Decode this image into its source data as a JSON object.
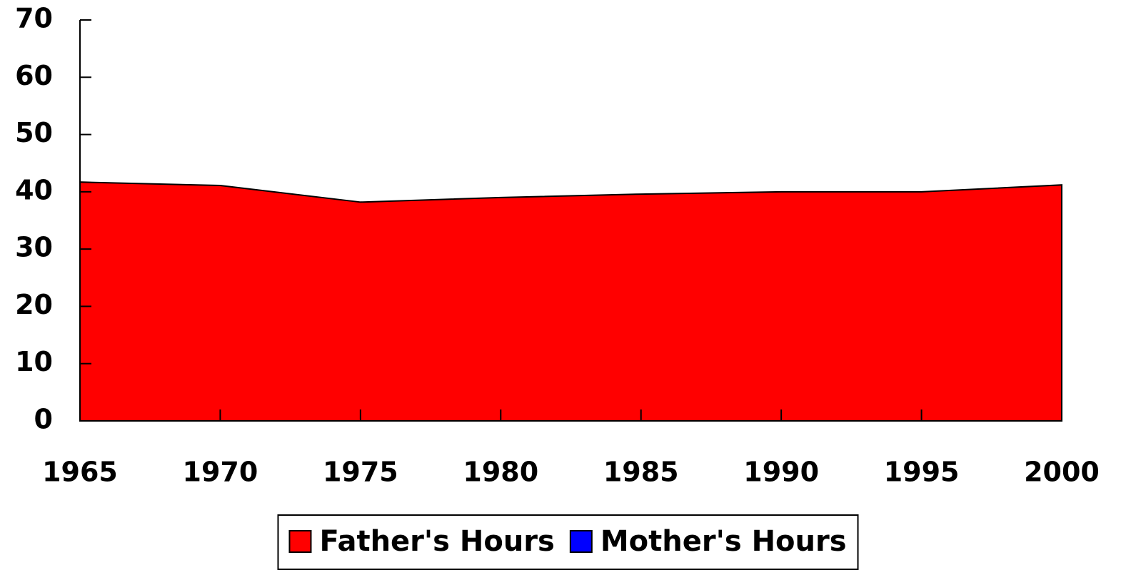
{
  "chart_data": {
    "type": "area",
    "x": [
      1965,
      1970,
      1975,
      1980,
      1985,
      1990,
      1995,
      2000
    ],
    "series": [
      {
        "name": "Father's Hours",
        "color": "#ff0000",
        "values": [
          41.7,
          41.1,
          38.2,
          39.0,
          39.6,
          40.0,
          40.0,
          41.2
        ]
      },
      {
        "name": "Mother's Hours",
        "color": "#0000ff",
        "values": [
          null,
          null,
          null,
          null,
          null,
          null,
          null,
          null
        ]
      }
    ],
    "xlim": [
      1965,
      2000
    ],
    "xticks": [
      1965,
      1970,
      1975,
      1980,
      1985,
      1990,
      1995,
      2000
    ],
    "ylim": [
      0,
      70
    ],
    "yticks": [
      0,
      10,
      20,
      30,
      40,
      50,
      60,
      70
    ],
    "legend": "bottom"
  }
}
